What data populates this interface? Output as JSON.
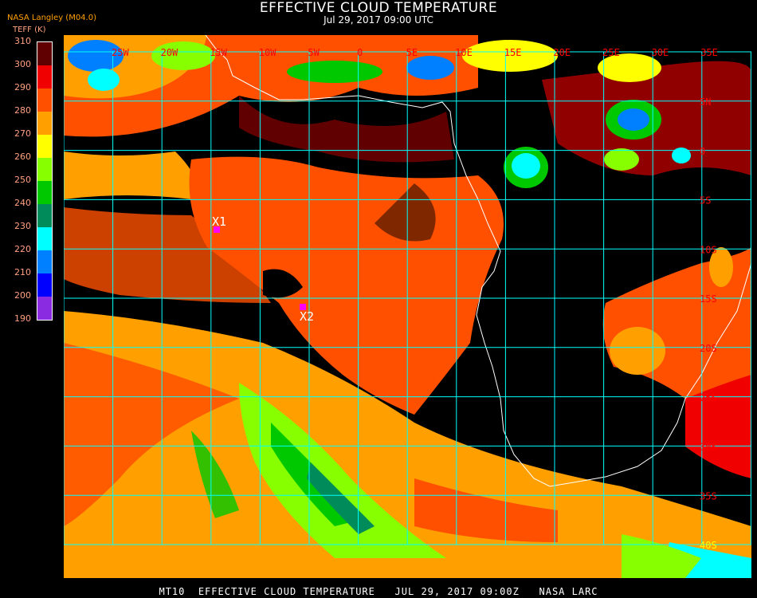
{
  "header": {
    "title": "EFFECTIVE CLOUD TEMPERATURE",
    "subtitle": "Jul 29, 2017 09:00 UTC",
    "source": "NASA Langley (M04.0)"
  },
  "legend": {
    "unit_label": "TEFF (K)",
    "ticks": [
      "310",
      "300",
      "290",
      "280",
      "270",
      "260",
      "250",
      "240",
      "230",
      "220",
      "210",
      "200",
      "190"
    ],
    "colors": [
      "#600000",
      "#f00000",
      "#ff5000",
      "#ffa000",
      "#ffff00",
      "#88ff00",
      "#00c800",
      "#008c5a",
      "#00ffff",
      "#0080ff",
      "#0000ff",
      "#8a2be2"
    ]
  },
  "map": {
    "lon_labels": [
      "25W",
      "20W",
      "15W",
      "10W",
      "5W",
      "0",
      "5E",
      "10E",
      "15E",
      "20E",
      "25E",
      "30E",
      "35E"
    ],
    "lat_labels": [
      "5N",
      "0",
      "5S",
      "10S",
      "15S",
      "20S",
      "25S",
      "30S",
      "35S",
      "40S"
    ],
    "grid_color": "#00ffff",
    "label_color": "#ff0000",
    "coast_color": "#ffffff",
    "markers": [
      {
        "label": "X1",
        "color": "#ff00ff"
      },
      {
        "label": "X2",
        "color": "#ff00ff"
      }
    ]
  },
  "footer": "MT10  EFFECTIVE CLOUD TEMPERATURE   JUL 29, 2017 09:00Z   NASA LARC"
}
